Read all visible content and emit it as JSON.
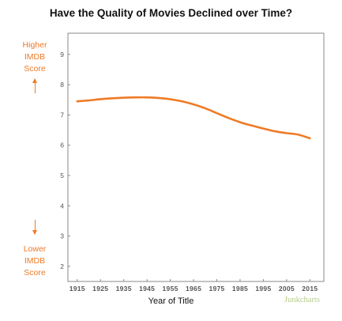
{
  "chart_data": {
    "type": "line",
    "title": "Have the Quality of Movies Declined over Time?",
    "xlabel": "Year of Title",
    "ylabel": "",
    "xlim": [
      1911,
      2021
    ],
    "ylim": [
      1.5,
      9.7
    ],
    "x_ticks": [
      1915,
      1925,
      1935,
      1945,
      1955,
      1965,
      1975,
      1985,
      1995,
      2005,
      2015
    ],
    "y_ticks": [
      2,
      3,
      4,
      5,
      6,
      7,
      8,
      9
    ],
    "grid": false,
    "series": [
      {
        "color": "#ef7a26",
        "x": [
          1915,
          1920,
          1925,
          1930,
          1935,
          1940,
          1945,
          1950,
          1955,
          1960,
          1965,
          1970,
          1975,
          1980,
          1985,
          1990,
          1995,
          2000,
          2005,
          2010,
          2015
        ],
        "values": [
          7.45,
          7.48,
          7.52,
          7.55,
          7.57,
          7.58,
          7.58,
          7.56,
          7.52,
          7.45,
          7.35,
          7.22,
          7.06,
          6.9,
          6.76,
          6.65,
          6.55,
          6.46,
          6.4,
          6.35,
          6.23
        ]
      }
    ]
  },
  "annotations": {
    "higher": "Higher\nIMDB\nScore",
    "lower": "Lower\nIMDB\nScore"
  },
  "credit": "Junkcharts",
  "colors": {
    "line": "#ef7a26",
    "annotation": "#ef7a26",
    "credit": "#b6cc8a",
    "frame": "#8a8a8a"
  },
  "icons": {
    "up_arrow": "arrow-up-icon",
    "down_arrow": "arrow-down-icon"
  }
}
